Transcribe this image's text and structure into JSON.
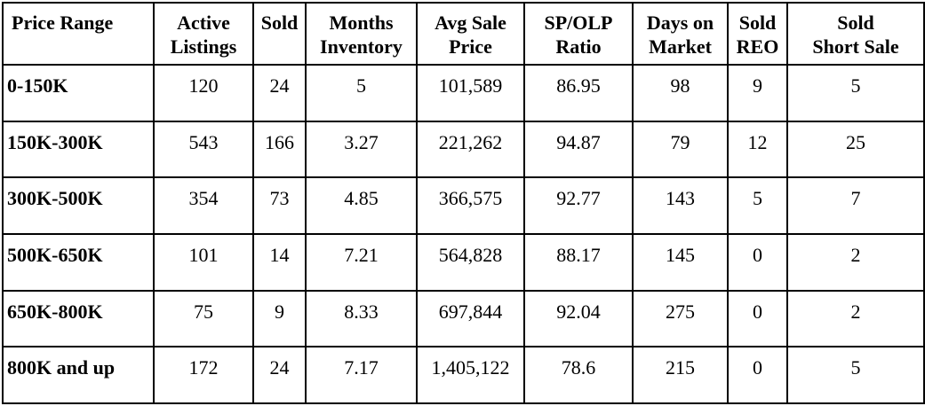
{
  "table": {
    "headers": [
      [
        "Price Range"
      ],
      [
        "Active",
        "Listings"
      ],
      [
        "Sold"
      ],
      [
        "Months",
        "Inventory"
      ],
      [
        "Avg Sale",
        "Price"
      ],
      [
        "SP/OLP",
        "Ratio"
      ],
      [
        "Days on",
        "Market"
      ],
      [
        "Sold",
        "REO"
      ],
      [
        "Sold",
        "Short Sale"
      ]
    ],
    "rows": [
      [
        "0-150K",
        "120",
        "24",
        "5",
        "101,589",
        "86.95",
        "98",
        "9",
        "5"
      ],
      [
        "150K-300K",
        "543",
        "166",
        "3.27",
        "221,262",
        "94.87",
        "79",
        "12",
        "25"
      ],
      [
        "300K-500K",
        "354",
        "73",
        "4.85",
        "366,575",
        "92.77",
        "143",
        "5",
        "7"
      ],
      [
        "500K-650K",
        "101",
        "14",
        "7.21",
        "564,828",
        "88.17",
        "145",
        "0",
        "2"
      ],
      [
        "650K-800K",
        "75",
        "9",
        "8.33",
        "697,844",
        "92.04",
        "275",
        "0",
        "2"
      ],
      [
        "800K and up",
        "172",
        "24",
        "7.17",
        "1,405,122",
        "78.6",
        "215",
        "0",
        "5"
      ]
    ]
  }
}
